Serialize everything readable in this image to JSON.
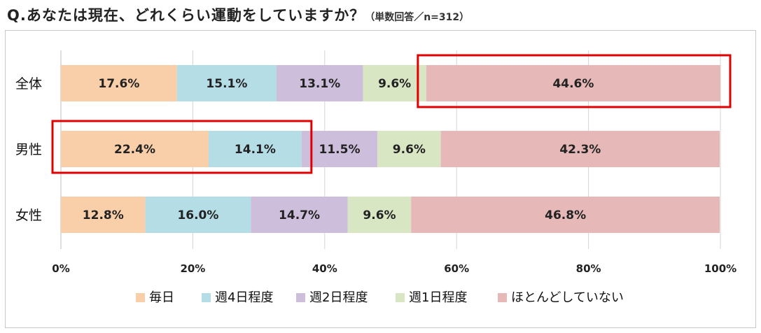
{
  "title": {
    "main": "Q.あなたは現在、どれくらい運動をしていますか？",
    "note": "（単数回答／n=312）"
  },
  "chart_data": {
    "type": "bar",
    "orientation": "horizontal",
    "stacked": "percent",
    "categories": [
      "全体",
      "男性",
      "女性"
    ],
    "series": [
      {
        "name": "毎日",
        "values": [
          17.6,
          22.4,
          12.8
        ],
        "labels": [
          "17.6%",
          "22.4%",
          "12.8%"
        ],
        "color": "#f9cfa9"
      },
      {
        "name": "週4日程度",
        "values": [
          15.1,
          14.1,
          16.0
        ],
        "labels": [
          "15.1%",
          "14.1%",
          "16.0%"
        ],
        "color": "#b5dde6"
      },
      {
        "name": "週2日程度",
        "values": [
          13.1,
          11.5,
          14.7
        ],
        "labels": [
          "13.1%",
          "11.5%",
          "14.7%"
        ],
        "color": "#cdbfdb"
      },
      {
        "name": "週1日程度",
        "values": [
          9.6,
          9.6,
          9.6
        ],
        "labels": [
          "9.6%",
          "9.6%",
          "9.6%"
        ],
        "color": "#d9e6c4"
      },
      {
        "name": "ほとんどしていない",
        "values": [
          44.6,
          42.3,
          46.8
        ],
        "labels": [
          "44.6%",
          "42.3%",
          "46.8%"
        ],
        "color": "#e6b8b7"
      }
    ],
    "xticks": [
      "0%",
      "20%",
      "40%",
      "60%",
      "80%",
      "100%"
    ],
    "xlim": [
      0,
      100
    ],
    "grid": true,
    "legend": "bottom",
    "highlights": [
      {
        "category": "全体",
        "series": [
          "ほとんどしていない"
        ],
        "color": "#e00000"
      },
      {
        "category": "男性",
        "series": [
          "毎日",
          "週4日程度"
        ],
        "color": "#e00000"
      }
    ]
  }
}
